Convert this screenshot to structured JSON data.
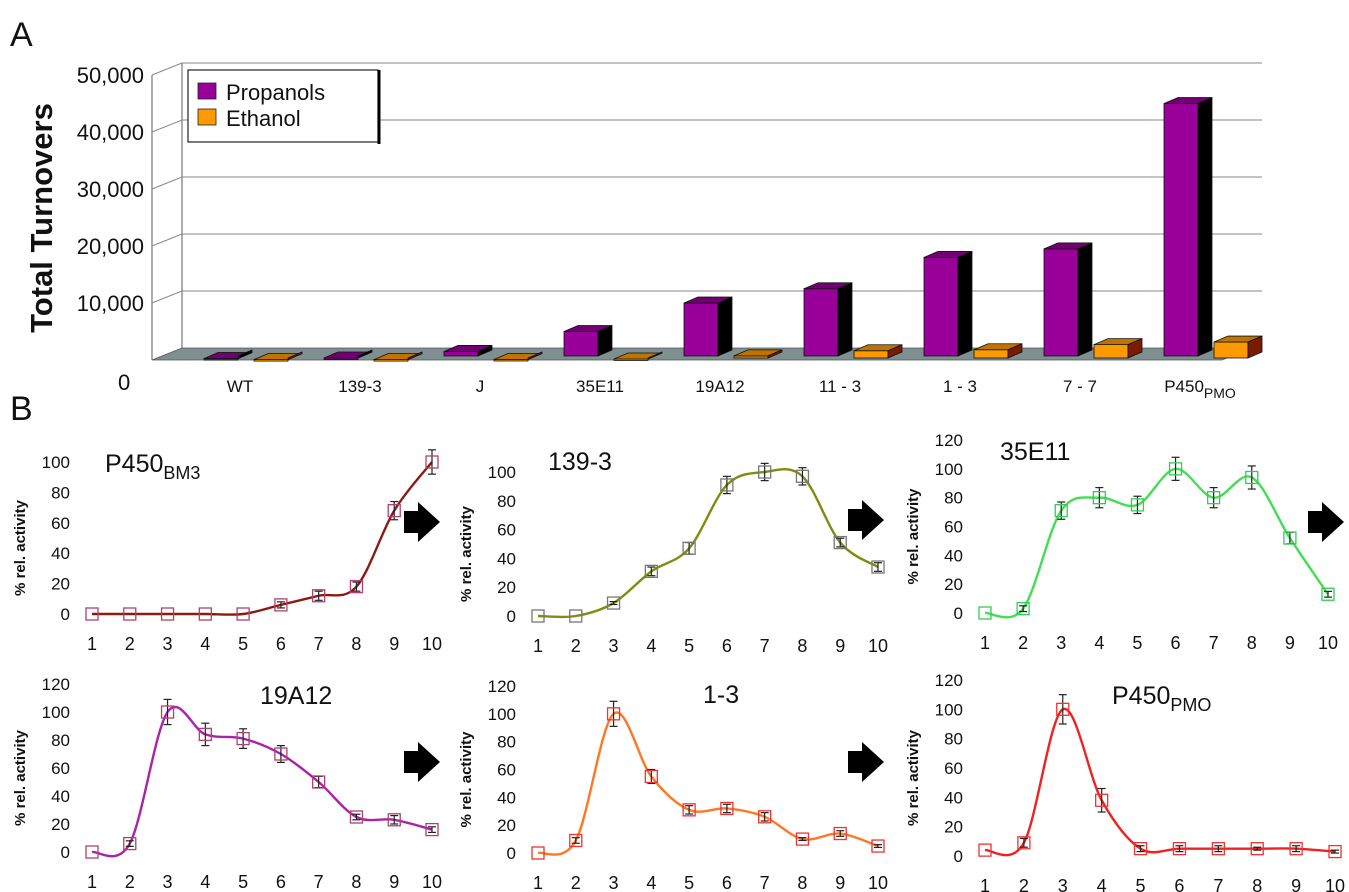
{
  "panel_labels": {
    "a": "A",
    "b": "B"
  },
  "chart_data": [
    {
      "type": "bar",
      "panel": "A",
      "ylabel": "Total Turnovers",
      "categories": [
        "WT",
        "139-3",
        "J",
        "35E11",
        "19A12",
        "11 - 3",
        "1 - 3",
        "7 - 7",
        "P450PMO"
      ],
      "category_labels": [
        {
          "main": "WT",
          "sub": ""
        },
        {
          "main": "139-3",
          "sub": ""
        },
        {
          "main": "J",
          "sub": ""
        },
        {
          "main": "35E11",
          "sub": ""
        },
        {
          "main": "19A12",
          "sub": ""
        },
        {
          "main": "11   - 3",
          "sub": ""
        },
        {
          "main": "1 - 3",
          "sub": ""
        },
        {
          "main": "7 - 7",
          "sub": ""
        },
        {
          "main": "P450",
          "sub": "PMO"
        }
      ],
      "series": [
        {
          "name": "Propanols",
          "color": "#990099",
          "values": [
            250,
            350,
            1500,
            5000,
            10000,
            12500,
            18000,
            19500,
            45000
          ]
        },
        {
          "name": "Ethanol",
          "color": "#ff9900",
          "values": [
            80,
            80,
            100,
            200,
            800,
            1800,
            2000,
            3000,
            3500
          ]
        }
      ],
      "ylim": [
        0,
        50000
      ],
      "yticks": [
        0,
        10000,
        20000,
        30000,
        40000,
        50000
      ],
      "ytick_labels": [
        "0",
        "10,000",
        "20,000",
        "30,000",
        "40,000",
        "50,000"
      ],
      "legend_position": "top-left",
      "grid": true
    },
    {
      "type": "line",
      "panel": "B",
      "title": "P450",
      "title_sub": "BM3",
      "ylabel": "% rel. activity",
      "color": "#8b1a10",
      "x": [
        1,
        2,
        3,
        4,
        5,
        6,
        7,
        8,
        9,
        10
      ],
      "y": [
        0,
        0,
        0,
        0,
        0,
        6,
        12,
        18,
        68,
        100
      ],
      "err": [
        0,
        0,
        0,
        0,
        0,
        2,
        3,
        3,
        6,
        8
      ],
      "ylim": [
        0,
        100
      ],
      "yticks": [
        0,
        20,
        40,
        60,
        80,
        100
      ],
      "arrow": true
    },
    {
      "type": "line",
      "panel": "B",
      "title": "139-3",
      "title_sub": "",
      "ylabel": "% rel. activity",
      "color": "#7f8c10",
      "x": [
        1,
        2,
        3,
        4,
        5,
        6,
        7,
        8,
        9,
        10
      ],
      "y": [
        0,
        0,
        9,
        31,
        47,
        91,
        100,
        97,
        51,
        34
      ],
      "err": [
        0,
        0,
        1,
        3,
        4,
        6,
        6,
        6,
        3,
        3
      ],
      "ylim": [
        0,
        100
      ],
      "yticks": [
        0,
        20,
        40,
        60,
        80,
        100
      ],
      "arrow": true
    },
    {
      "type": "line",
      "panel": "B",
      "title": "35E11",
      "title_sub": "",
      "ylabel": "% rel. activity",
      "color": "#44dd55",
      "x": [
        1,
        2,
        3,
        4,
        5,
        6,
        7,
        8,
        9,
        10
      ],
      "y": [
        0,
        3,
        71,
        80,
        75,
        100,
        80,
        94,
        52,
        13
      ],
      "err": [
        0,
        2,
        6,
        7,
        6,
        8,
        7,
        8,
        4,
        2
      ],
      "ylim": [
        0,
        120
      ],
      "yticks": [
        0,
        20,
        40,
        60,
        80,
        100,
        120
      ],
      "arrow": true
    },
    {
      "type": "line",
      "panel": "B",
      "title": "19A12",
      "title_sub": "",
      "ylabel": "% rel. activity",
      "color": "#aa22aa",
      "x": [
        1,
        2,
        3,
        4,
        5,
        6,
        7,
        8,
        9,
        10
      ],
      "y": [
        0,
        6,
        100,
        84,
        81,
        70,
        50,
        25,
        23,
        16
      ],
      "err": [
        0,
        2,
        9,
        8,
        7,
        6,
        4,
        2,
        3,
        2
      ],
      "ylim": [
        0,
        120
      ],
      "yticks": [
        0,
        20,
        40,
        60,
        80,
        100,
        120
      ],
      "arrow": true
    },
    {
      "type": "line",
      "panel": "B",
      "title": "1-3",
      "title_sub": "",
      "ylabel": "% rel. activity",
      "color": "#ff7722",
      "x": [
        1,
        2,
        3,
        4,
        5,
        6,
        7,
        8,
        9,
        10
      ],
      "y": [
        0,
        9,
        100,
        55,
        31,
        32,
        26,
        10,
        14,
        5
      ],
      "err": [
        0,
        2,
        9,
        5,
        3,
        3,
        3,
        1,
        2,
        1
      ],
      "ylim": [
        0,
        120
      ],
      "yticks": [
        0,
        20,
        40,
        60,
        80,
        100,
        120
      ],
      "arrow": true
    },
    {
      "type": "line",
      "panel": "B",
      "title": "P450",
      "title_sub": "PMO",
      "ylabel": "% rel. activity",
      "color": "#ee2222",
      "x": [
        1,
        2,
        3,
        4,
        5,
        6,
        7,
        8,
        9,
        10
      ],
      "y": [
        4,
        9,
        100,
        38,
        5,
        5,
        5,
        5,
        5,
        3
      ],
      "err": [
        0,
        3,
        10,
        8,
        2,
        2,
        2,
        1,
        2,
        1
      ],
      "ylim": [
        0,
        120
      ],
      "yticks": [
        0,
        20,
        40,
        60,
        80,
        100,
        120
      ],
      "arrow": false
    }
  ]
}
